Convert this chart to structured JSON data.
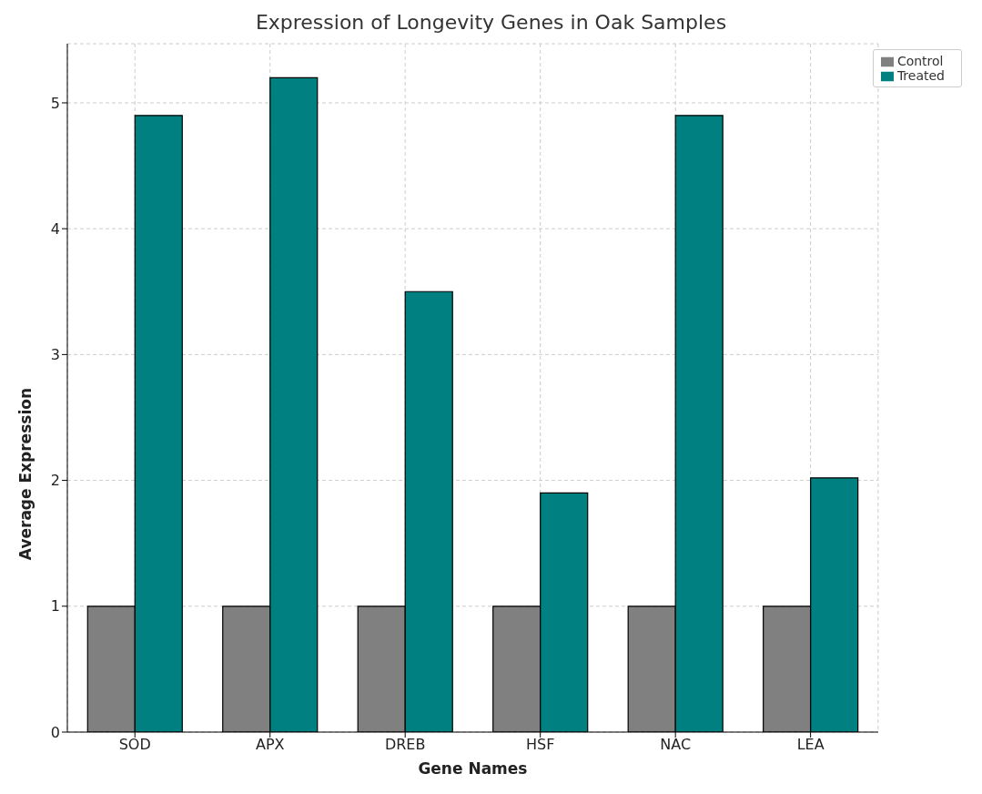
{
  "chart_data": {
    "type": "bar",
    "title": "Expression of Longevity Genes in Oak Samples",
    "xlabel": "Gene Names",
    "ylabel": "Average Expression",
    "categories": [
      "SOD",
      "APX",
      "DREB",
      "HSF",
      "NAC",
      "LEA"
    ],
    "series": [
      {
        "name": "Control",
        "color": "#808080",
        "values": [
          1,
          1,
          1,
          1,
          1,
          1
        ]
      },
      {
        "name": "Treated",
        "color": "#008080",
        "values": [
          4.9,
          5.2,
          3.5,
          1.9,
          4.9,
          2.02
        ]
      }
    ],
    "ylim": [
      0,
      5.47
    ],
    "yticks": [
      0,
      1,
      2,
      3,
      4,
      5
    ],
    "grid": true,
    "legend": "top right"
  }
}
